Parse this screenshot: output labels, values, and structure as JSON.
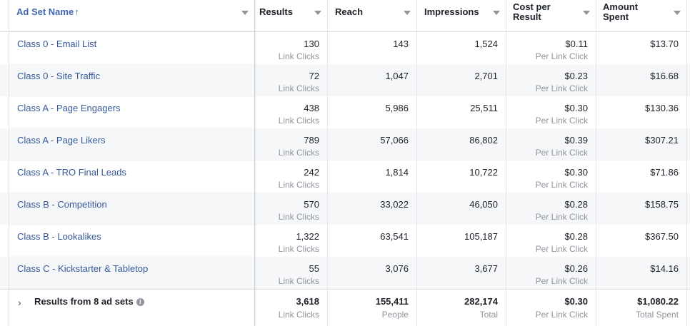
{
  "header": {
    "ad_set_name": "Ad Set Name",
    "sort_arrow": "↑",
    "results": "Results",
    "reach": "Reach",
    "impressions": "Impressions",
    "cost_per_result_line1": "Cost per",
    "cost_per_result_line2": "Result",
    "amount_spent_line1": "Amount",
    "amount_spent_line2": "Spent"
  },
  "rows": [
    {
      "name": "Class 0 - Email List",
      "results": "130",
      "results_sub": "Link Clicks",
      "reach": "143",
      "impressions": "1,524",
      "cost": "$0.11",
      "cost_sub": "Per Link Click",
      "spent": "$13.70"
    },
    {
      "name": "Class 0 - Site Traffic",
      "results": "72",
      "results_sub": "Link Clicks",
      "reach": "1,047",
      "impressions": "2,701",
      "cost": "$0.23",
      "cost_sub": "Per Link Click",
      "spent": "$16.68"
    },
    {
      "name": "Class A - Page Engagers",
      "results": "438",
      "results_sub": "Link Clicks",
      "reach": "5,986",
      "impressions": "25,511",
      "cost": "$0.30",
      "cost_sub": "Per Link Click",
      "spent": "$130.36"
    },
    {
      "name": "Class A - Page Likers",
      "results": "789",
      "results_sub": "Link Clicks",
      "reach": "57,066",
      "impressions": "86,802",
      "cost": "$0.39",
      "cost_sub": "Per Link Click",
      "spent": "$307.21"
    },
    {
      "name": "Class A - TRO Final Leads",
      "results": "242",
      "results_sub": "Link Clicks",
      "reach": "1,814",
      "impressions": "10,722",
      "cost": "$0.30",
      "cost_sub": "Per Link Click",
      "spent": "$71.86"
    },
    {
      "name": "Class B - Competition",
      "results": "570",
      "results_sub": "Link Clicks",
      "reach": "33,022",
      "impressions": "46,050",
      "cost": "$0.28",
      "cost_sub": "Per Link Click",
      "spent": "$158.75"
    },
    {
      "name": "Class B - Lookalikes",
      "results": "1,322",
      "results_sub": "Link Clicks",
      "reach": "63,541",
      "impressions": "105,187",
      "cost": "$0.28",
      "cost_sub": "Per Link Click",
      "spent": "$367.50"
    },
    {
      "name": "Class C - Kickstarter & Tabletop",
      "results": "55",
      "results_sub": "Link Clicks",
      "reach": "3,076",
      "impressions": "3,677",
      "cost": "$0.26",
      "cost_sub": "Per Link Click",
      "spent": "$14.16"
    }
  ],
  "total": {
    "label": "Results from 8 ad sets",
    "info_icon": "i",
    "expand_icon": "›",
    "results": "3,618",
    "results_sub": "Link Clicks",
    "reach": "155,411",
    "reach_sub": "People",
    "impressions": "282,174",
    "impressions_sub": "Total",
    "cost": "$0.30",
    "cost_sub": "Per Link Click",
    "spent": "$1,080.22",
    "spent_sub": "Total Spent"
  },
  "colors": {
    "link": "#365899",
    "header_accent": "#4267b2",
    "muted": "#90949c",
    "alt_row": "#f6f7f9"
  }
}
